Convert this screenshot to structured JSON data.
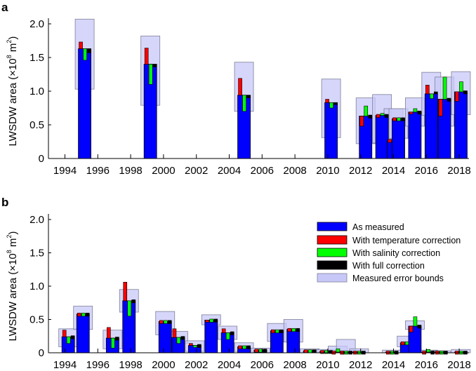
{
  "colors": {
    "measured": "#0000ff",
    "temperature": "#ff0000",
    "salinity": "#00ff00",
    "full": "#000000",
    "error_fill": "#c8c8f8",
    "error_stroke": "#7f7f9a"
  },
  "legend": {
    "placement": "top-right of panel b",
    "items": [
      {
        "key": "measured",
        "label": "As measured"
      },
      {
        "key": "temperature",
        "label": "With temperature correction"
      },
      {
        "key": "salinity",
        "label": "With salinity correction"
      },
      {
        "key": "full",
        "label": "With full correction"
      },
      {
        "key": "error",
        "label": "Measured error bounds"
      }
    ]
  },
  "chart_data": [
    {
      "type": "bar",
      "panel": "a",
      "ylabel_main": "LWSDW area (×10",
      "ylabel_sup": "8",
      "ylabel_unit": " m",
      "ylabel_sup2": "2",
      "ylabel_close": ")",
      "xlabel": "",
      "xlim": [
        1993,
        2019
      ],
      "ylim": [
        0,
        2.0
      ],
      "yticks": [
        0,
        0.5,
        1.0,
        1.5,
        2.0
      ],
      "ytick_labels": [
        "0",
        "0.5",
        "1.0",
        "1.5",
        "2.0"
      ],
      "xticks": [
        1994,
        1996,
        1998,
        2000,
        2002,
        2004,
        2006,
        2008,
        2010,
        2012,
        2014,
        2016,
        2018
      ],
      "xtick_labels": [
        "1994",
        "1996",
        "1998",
        "2000",
        "2002",
        "2004",
        "2006",
        "2008",
        "2010",
        "2012",
        "2014",
        "2016",
        "2018"
      ],
      "grid": false,
      "bars": [
        {
          "x": 1995.2,
          "measured": 1.63,
          "temperature": 1.73,
          "salinity": 1.46,
          "full": 1.57,
          "err": [
            1.03,
            2.07
          ]
        },
        {
          "x": 1999.2,
          "measured": 1.4,
          "temperature": 1.64,
          "salinity": 1.1,
          "full": 1.36,
          "err": [
            0.79,
            1.82
          ]
        },
        {
          "x": 2004.9,
          "measured": 0.94,
          "temperature": 1.19,
          "salinity": 0.7,
          "full": 0.9,
          "err": [
            0.7,
            1.43
          ]
        },
        {
          "x": 2010.2,
          "measured": 0.83,
          "temperature": 0.88,
          "salinity": 0.75,
          "full": 0.8,
          "err": [
            0.31,
            1.18
          ]
        },
        {
          "x": 2012.3,
          "measured": 0.63,
          "temperature": 0.48,
          "salinity": 0.78,
          "full": 0.63,
          "err": [
            0.22,
            0.9
          ]
        },
        {
          "x": 2013.3,
          "measured": 0.64,
          "temperature": 0.65,
          "salinity": 0.67,
          "full": 0.65,
          "err": [
            0.23,
            0.95
          ]
        },
        {
          "x": 2014.0,
          "measured": 0.27,
          "temperature": 0.27,
          "salinity": 0.27,
          "full": 0.27,
          "err": [
            0.07,
            0.74
          ]
        },
        {
          "x": 2014.3,
          "measured": 0.59,
          "temperature": 0.59,
          "salinity": 0.59,
          "full": 0.6,
          "err": [
            0.3,
            0.74
          ]
        },
        {
          "x": 2015.3,
          "measured": 0.69,
          "temperature": 0.66,
          "salinity": 0.74,
          "full": 0.69,
          "err": [
            0.48,
            0.9
          ]
        },
        {
          "x": 2016.3,
          "measured": 0.96,
          "temperature": 1.09,
          "salinity": 0.89,
          "full": 0.99,
          "err": [
            0.64,
            1.28
          ]
        },
        {
          "x": 2017.1,
          "measured": 0.88,
          "temperature": 0.63,
          "salinity": 1.21,
          "full": 0.89,
          "err": [
            0.48,
            1.21
          ]
        },
        {
          "x": 2018.1,
          "measured": 0.99,
          "temperature": 0.85,
          "salinity": 1.14,
          "full": 0.98,
          "err": [
            0.65,
            1.29
          ]
        }
      ]
    },
    {
      "type": "bar",
      "panel": "b",
      "ylabel_main": "LWSDW area (×10",
      "ylabel_sup": "8",
      "ylabel_unit": " m",
      "ylabel_sup2": "2",
      "ylabel_close": ")",
      "xlabel": "",
      "xlim": [
        1993,
        2019
      ],
      "ylim": [
        0,
        2.0
      ],
      "yticks": [
        0,
        0.5,
        1.0,
        1.5,
        2.0
      ],
      "ytick_labels": [
        "0",
        "0.5",
        "1.0",
        "1.5",
        "2.0"
      ],
      "xticks": [
        1994,
        1996,
        1998,
        2000,
        2002,
        2004,
        2006,
        2008,
        2010,
        2012,
        2014,
        2016,
        2018
      ],
      "xtick_labels": [
        "1994",
        "1996",
        "1998",
        "2000",
        "2002",
        "2004",
        "2006",
        "2008",
        "2010",
        "2012",
        "2014",
        "2016",
        "2018"
      ],
      "grid": false,
      "bars": [
        {
          "x": 1994.2,
          "measured": 0.24,
          "temperature": 0.34,
          "salinity": 0.14,
          "full": 0.23,
          "err": [
            0.09,
            0.36
          ]
        },
        {
          "x": 1995.1,
          "measured": 0.58,
          "temperature": 0.58,
          "salinity": 0.58,
          "full": 0.57,
          "err": [
            0.35,
            0.7
          ]
        },
        {
          "x": 1996.9,
          "measured": 0.22,
          "temperature": 0.38,
          "salinity": 0.07,
          "full": 0.22,
          "err": [
            0.06,
            0.34
          ]
        },
        {
          "x": 1997.9,
          "measured": 0.78,
          "temperature": 1.06,
          "salinity": 0.55,
          "full": 0.76,
          "err": [
            0.61,
            0.95
          ]
        },
        {
          "x": 2000.1,
          "measured": 0.47,
          "temperature": 0.48,
          "salinity": 0.45,
          "full": 0.47,
          "err": [
            0.27,
            0.62
          ]
        },
        {
          "x": 2000.9,
          "measured": 0.23,
          "temperature": 0.36,
          "salinity": 0.14,
          "full": 0.23,
          "err": [
            0.14,
            0.32
          ]
        },
        {
          "x": 2001.9,
          "measured": 0.11,
          "temperature": 0.14,
          "salinity": 0.08,
          "full": 0.11,
          "err": [
            0.02,
            0.18
          ]
        },
        {
          "x": 2002.9,
          "measured": 0.49,
          "temperature": 0.46,
          "salinity": 0.51,
          "full": 0.49,
          "err": [
            0.42,
            0.57
          ]
        },
        {
          "x": 2003.9,
          "measured": 0.3,
          "temperature": 0.36,
          "salinity": 0.2,
          "full": 0.3,
          "err": [
            0.2,
            0.4
          ]
        },
        {
          "x": 2004.9,
          "measured": 0.09,
          "temperature": 0.1,
          "salinity": 0.08,
          "full": 0.09,
          "err": [
            0.02,
            0.15
          ]
        },
        {
          "x": 2005.9,
          "measured": 0.04,
          "temperature": 0.05,
          "salinity": 0.03,
          "full": 0.04,
          "err": [
            0.0,
            0.07
          ]
        },
        {
          "x": 2006.9,
          "measured": 0.33,
          "temperature": 0.33,
          "salinity": 0.33,
          "full": 0.33,
          "err": [
            0.17,
            0.44
          ]
        },
        {
          "x": 2007.9,
          "measured": 0.35,
          "temperature": 0.33,
          "salinity": 0.37,
          "full": 0.35,
          "err": [
            0.16,
            0.5
          ]
        },
        {
          "x": 2008.9,
          "measured": 0.03,
          "temperature": 0.02,
          "salinity": 0.04,
          "full": 0.03,
          "err": [
            0.0,
            0.06
          ]
        },
        {
          "x": 2009.9,
          "measured": 0.02,
          "temperature": 0.02,
          "salinity": 0.04,
          "full": 0.02,
          "err": [
            0.0,
            0.05
          ]
        },
        {
          "x": 2010.6,
          "measured": 0.01,
          "temperature": 0.01,
          "salinity": 0.06,
          "full": 0.01,
          "err": [
            0.0,
            0.1
          ]
        },
        {
          "x": 2011.1,
          "measured": 0.01,
          "temperature": 0.01,
          "salinity": 0.01,
          "full": 0.01,
          "err": [
            0.0,
            0.2
          ]
        },
        {
          "x": 2011.9,
          "measured": 0.01,
          "temperature": 0.01,
          "salinity": 0.01,
          "full": 0.02,
          "err": [
            0.0,
            0.06
          ]
        },
        {
          "x": 2013.9,
          "measured": 0.01,
          "temperature": 0.01,
          "salinity": 0.01,
          "full": 0.01,
          "err": [
            0.0,
            0.04
          ]
        },
        {
          "x": 2014.8,
          "measured": 0.15,
          "temperature": 0.15,
          "salinity": 0.17,
          "full": 0.15,
          "err": [
            0.09,
            0.25
          ]
        },
        {
          "x": 2015.3,
          "measured": 0.4,
          "temperature": 0.31,
          "salinity": 0.54,
          "full": 0.4,
          "err": [
            0.35,
            0.48
          ]
        },
        {
          "x": 2016.1,
          "measured": 0.01,
          "temperature": 0.01,
          "salinity": 0.05,
          "full": 0.01,
          "err": [
            0.0,
            0.04
          ]
        },
        {
          "x": 2016.9,
          "measured": 0.01,
          "temperature": 0.01,
          "salinity": 0.01,
          "full": 0.01,
          "err": [
            0.0,
            0.03
          ]
        },
        {
          "x": 2018.1,
          "measured": 0.01,
          "temperature": 0.01,
          "salinity": 0.01,
          "full": 0.02,
          "err": [
            0.0,
            0.05
          ]
        }
      ]
    }
  ]
}
